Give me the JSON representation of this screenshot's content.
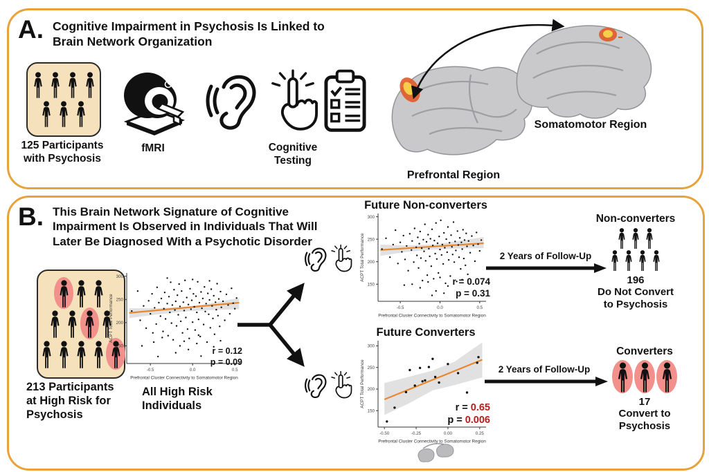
{
  "colors": {
    "panel_border": "#E8A23C",
    "card_bg": "#F5E1BB",
    "highlight_oval": "#F2908B",
    "trend_line": "#E8872F",
    "ci_band": "#C9C9C9",
    "stat_red": "#B91C1C",
    "brain_gray": "#C9C9CB",
    "activation_orange": "#E05A28",
    "activation_yellow": "#F7CE4A",
    "icon_black": "#111111"
  },
  "panel_a": {
    "label": "A.",
    "title_line1": "Cognitive Impairment in Psychosis Is Linked to",
    "title_line2": "Brain Network Organization",
    "participants_line1": "125 Participants",
    "participants_line2": "with Psychosis",
    "fmri_label": "fMRI",
    "cognitive_line1": "Cognitive",
    "cognitive_line2": "Testing",
    "prefrontal_label": "Prefrontal Region",
    "somatomotor_label": "Somatomotor Region",
    "people_card": {
      "rows": [
        [
          0,
          0,
          0,
          0
        ],
        [
          0,
          0,
          0
        ]
      ]
    }
  },
  "panel_b": {
    "label": "B.",
    "title_line1": "This Brain Network Signature of Cognitive",
    "title_line2": "Impairment Is Observed in Individuals That Will",
    "title_line3": "Later Be Diagnosed With a Psychotic Disorder",
    "participants_line1": "213 Participants",
    "participants_line2": "at High Risk for",
    "participants_line3": "Psychosis",
    "people_card": {
      "rows": [
        [
          1,
          0,
          0
        ],
        [
          0,
          0,
          1,
          0
        ],
        [
          0,
          0,
          0,
          0,
          1
        ]
      ]
    },
    "all_high_risk_line1": "All High Risk",
    "all_high_risk_line2": "Individuals",
    "followup_top": "2 Years of Follow-Up",
    "followup_bottom": "2 Years of Follow-Up",
    "nonconverters": {
      "title": "Non-converters",
      "people": {
        "rows": [
          [
            0,
            0,
            0
          ],
          [
            0,
            0,
            0,
            0
          ]
        ]
      },
      "count": "196",
      "line1": "Do Not Convert",
      "line2": "to Psychosis"
    },
    "converters": {
      "title": "Converters",
      "people": {
        "rows": [
          [
            1,
            1,
            1
          ]
        ]
      },
      "count": "17",
      "line1": "Convert to",
      "line2": "Psychosis"
    }
  },
  "chart_data": [
    {
      "type": "scatter",
      "title": "",
      "caption": "All High Risk Individuals",
      "xlabel": "Prefrontal Cluster Connectivity to Somatomotor Region",
      "ylabel": "ACPT Total Performance",
      "xlim": [
        -0.78,
        0.58
      ],
      "ylim": [
        112,
        307
      ],
      "x_ticks": [
        [
          -0.5,
          "-0.5"
        ],
        [
          0,
          "0.0"
        ],
        [
          0.5,
          "0.5"
        ]
      ],
      "y_ticks": [
        [
          150,
          "150"
        ],
        [
          200,
          "200"
        ],
        [
          250,
          "250"
        ],
        [
          300,
          "300"
        ]
      ],
      "stats": {
        "r_text": "r =",
        "r_value": "0.12",
        "p_text": "p =",
        "p_value": "0.09"
      },
      "n": 213,
      "point_r": 1.2,
      "trend": [
        [
          -0.75,
          221
        ],
        [
          0.55,
          243
        ]
      ],
      "band": [
        [
          -0.75,
          210,
          231
        ],
        [
          -0.45,
          217,
          231
        ],
        [
          -0.1,
          224,
          234
        ],
        [
          0.2,
          227,
          241
        ],
        [
          0.55,
          229,
          253
        ]
      ],
      "points": [
        [
          -0.72,
          225
        ],
        [
          -0.65,
          268
        ],
        [
          -0.62,
          205
        ],
        [
          -0.58,
          236
        ],
        [
          -0.55,
          188
        ],
        [
          -0.52,
          247
        ],
        [
          -0.5,
          219
        ],
        [
          -0.48,
          262
        ],
        [
          -0.46,
          158
        ],
        [
          -0.45,
          232
        ],
        [
          -0.43,
          197
        ],
        [
          -0.42,
          276
        ],
        [
          -0.4,
          243
        ],
        [
          -0.38,
          214
        ],
        [
          -0.37,
          252
        ],
        [
          -0.35,
          181
        ],
        [
          -0.34,
          230
        ],
        [
          -0.33,
          265
        ],
        [
          -0.32,
          208
        ],
        [
          -0.3,
          241
        ],
        [
          -0.29,
          172
        ],
        [
          -0.28,
          256
        ],
        [
          -0.27,
          222
        ],
        [
          -0.26,
          287
        ],
        [
          -0.25,
          199
        ],
        [
          -0.24,
          238
        ],
        [
          -0.23,
          163
        ],
        [
          -0.22,
          271
        ],
        [
          -0.21,
          227
        ],
        [
          -0.2,
          246
        ],
        [
          -0.19,
          193
        ],
        [
          -0.18,
          259
        ],
        [
          -0.17,
          217
        ],
        [
          -0.16,
          283
        ],
        [
          -0.15,
          235
        ],
        [
          -0.14,
          203
        ],
        [
          -0.13,
          268
        ],
        [
          -0.12,
          178
        ],
        [
          -0.11,
          244
        ],
        [
          -0.1,
          226
        ],
        [
          -0.09,
          291
        ],
        [
          -0.08,
          211
        ],
        [
          -0.07,
          254
        ],
        [
          -0.06,
          186
        ],
        [
          -0.05,
          239
        ],
        [
          -0.04,
          166
        ],
        [
          -0.03,
          273
        ],
        [
          -0.02,
          229
        ],
        [
          -0.01,
          248
        ],
        [
          0,
          201
        ],
        [
          0.01,
          262
        ],
        [
          0.02,
          234
        ],
        [
          0.03,
          184
        ],
        [
          0.04,
          257
        ],
        [
          0.05,
          222
        ],
        [
          0.06,
          288
        ],
        [
          0.07,
          207
        ],
        [
          0.08,
          243
        ],
        [
          0.09,
          170
        ],
        [
          0.1,
          266
        ],
        [
          0.11,
          231
        ],
        [
          0.12,
          252
        ],
        [
          0.13,
          196
        ],
        [
          0.14,
          277
        ],
        [
          0.15,
          224
        ],
        [
          0.16,
          241
        ],
        [
          0.17,
          158
        ],
        [
          0.18,
          263
        ],
        [
          0.19,
          218
        ],
        [
          0.2,
          249
        ],
        [
          0.21,
          189
        ],
        [
          0.22,
          272
        ],
        [
          0.23,
          236
        ],
        [
          0.24,
          209
        ],
        [
          0.25,
          258
        ],
        [
          0.26,
          175
        ],
        [
          0.27,
          244
        ],
        [
          0.28,
          228
        ],
        [
          0.29,
          284
        ],
        [
          0.3,
          215
        ],
        [
          0.31,
          251
        ],
        [
          0.32,
          192
        ],
        [
          0.33,
          267
        ],
        [
          0.34,
          233
        ],
        [
          0.36,
          246
        ],
        [
          0.38,
          205
        ],
        [
          0.4,
          261
        ],
        [
          0.42,
          238
        ],
        [
          0.44,
          219
        ],
        [
          0.46,
          274
        ],
        [
          0.48,
          242
        ],
        [
          0.5,
          230
        ],
        [
          0.52,
          253
        ],
        [
          -0.6,
          150
        ],
        [
          -0.41,
          127
        ],
        [
          -0.2,
          135
        ],
        [
          -0.05,
          142
        ],
        [
          0.1,
          128
        ],
        [
          0.25,
          148
        ],
        [
          0.05,
          155
        ],
        [
          -0.15,
          150
        ],
        [
          0.33,
          161
        ],
        [
          -0.3,
          296
        ],
        [
          0,
          293
        ],
        [
          0.2,
          290
        ],
        [
          -0.1,
          160
        ],
        [
          -0.36,
          168
        ],
        [
          0.07,
          173
        ],
        [
          -0.47,
          178
        ]
      ]
    },
    {
      "type": "scatter",
      "title": "Future Non-converters",
      "xlabel": "Prefrontal Cluster Connectivity to Somatomotor Region",
      "ylabel": "ACPT Total Performance",
      "xlim": [
        -0.78,
        0.58
      ],
      "ylim": [
        112,
        307
      ],
      "x_ticks": [
        [
          -0.5,
          "-0.5"
        ],
        [
          0,
          "0.0"
        ],
        [
          0.5,
          "0.5"
        ]
      ],
      "y_ticks": [
        [
          150,
          "150"
        ],
        [
          200,
          "200"
        ],
        [
          250,
          "250"
        ],
        [
          300,
          "300"
        ]
      ],
      "stats": {
        "r_text": "r =",
        "r_value": "0.074",
        "p_text": "p =",
        "p_value": "0.31"
      },
      "n": 196,
      "point_r": 1.2,
      "trend": [
        [
          -0.75,
          226
        ],
        [
          0.55,
          241
        ]
      ],
      "band": [
        [
          -0.75,
          213,
          238
        ],
        [
          -0.45,
          221,
          236
        ],
        [
          -0.1,
          227,
          238
        ],
        [
          0.2,
          229,
          245
        ],
        [
          0.55,
          230,
          255
        ]
      ],
      "points": [
        [
          -0.73,
          228
        ],
        [
          -0.68,
          252
        ],
        [
          -0.63,
          210
        ],
        [
          -0.59,
          238
        ],
        [
          -0.56,
          270
        ],
        [
          -0.53,
          196
        ],
        [
          -0.5,
          243
        ],
        [
          -0.48,
          222
        ],
        [
          -0.46,
          258
        ],
        [
          -0.44,
          205
        ],
        [
          -0.42,
          235
        ],
        [
          -0.4,
          180
        ],
        [
          -0.38,
          262
        ],
        [
          -0.36,
          226
        ],
        [
          -0.35,
          246
        ],
        [
          -0.33,
          199
        ],
        [
          -0.32,
          274
        ],
        [
          -0.3,
          232
        ],
        [
          -0.29,
          214
        ],
        [
          -0.28,
          254
        ],
        [
          -0.27,
          186
        ],
        [
          -0.26,
          240
        ],
        [
          -0.25,
          267
        ],
        [
          -0.24,
          208
        ],
        [
          -0.23,
          230
        ],
        [
          -0.22,
          158
        ],
        [
          -0.21,
          249
        ],
        [
          -0.2,
          223
        ],
        [
          -0.19,
          283
        ],
        [
          -0.18,
          202
        ],
        [
          -0.17,
          244
        ],
        [
          -0.16,
          170
        ],
        [
          -0.15,
          260
        ],
        [
          -0.14,
          229
        ],
        [
          -0.13,
          212
        ],
        [
          -0.12,
          251
        ],
        [
          -0.11,
          190
        ],
        [
          -0.1,
          272
        ],
        [
          -0.09,
          236
        ],
        [
          -0.08,
          162
        ],
        [
          -0.07,
          247
        ],
        [
          -0.06,
          218
        ],
        [
          -0.05,
          286
        ],
        [
          -0.04,
          206
        ],
        [
          -0.03,
          241
        ],
        [
          -0.02,
          175
        ],
        [
          -0.01,
          256
        ],
        [
          0,
          227
        ],
        [
          0.01,
          292
        ],
        [
          0.02,
          215
        ],
        [
          0.03,
          238
        ],
        [
          0.04,
          195
        ],
        [
          0.05,
          264
        ],
        [
          0.06,
          231
        ],
        [
          0.07,
          152
        ],
        [
          0.08,
          250
        ],
        [
          0.09,
          221
        ],
        [
          0.1,
          277
        ],
        [
          0.11,
          204
        ],
        [
          0.12,
          242
        ],
        [
          0.13,
          168
        ],
        [
          0.14,
          259
        ],
        [
          0.15,
          233
        ],
        [
          0.16,
          216
        ],
        [
          0.17,
          288
        ],
        [
          0.18,
          199
        ],
        [
          0.19,
          245
        ],
        [
          0.2,
          225
        ],
        [
          0.21,
          156
        ],
        [
          0.22,
          268
        ],
        [
          0.23,
          237
        ],
        [
          0.24,
          210
        ],
        [
          0.25,
          253
        ],
        [
          0.26,
          184
        ],
        [
          0.27,
          243
        ],
        [
          0.28,
          228
        ],
        [
          0.29,
          271
        ],
        [
          0.3,
          207
        ],
        [
          0.31,
          248
        ],
        [
          0.32,
          192
        ],
        [
          0.33,
          263
        ],
        [
          0.34,
          234
        ],
        [
          0.35,
          172
        ],
        [
          0.36,
          246
        ],
        [
          0.38,
          220
        ],
        [
          0.4,
          257
        ],
        [
          0.42,
          236
        ],
        [
          0.44,
          201
        ],
        [
          0.46,
          265
        ],
        [
          0.48,
          239
        ],
        [
          0.5,
          224
        ],
        [
          0.52,
          248
        ],
        [
          -0.45,
          148
        ],
        [
          -0.25,
          142
        ],
        [
          -0.05,
          135
        ],
        [
          0.1,
          146
        ],
        [
          0.05,
          130
        ],
        [
          -0.15,
          155
        ],
        [
          0.28,
          160
        ],
        [
          -0.35,
          150
        ],
        [
          0,
          165
        ],
        [
          -0.1,
          125
        ]
      ]
    },
    {
      "type": "scatter",
      "title": "Future Converters",
      "xlabel": "Prefrontal Cluster Connectivity to Somatomotor Region",
      "ylabel": "ACPT Total Performance",
      "xlim": [
        -0.55,
        0.3
      ],
      "ylim": [
        112,
        312
      ],
      "x_ticks": [
        [
          -0.5,
          "-0.50"
        ],
        [
          -0.25,
          "-0.25"
        ],
        [
          0,
          "0.00"
        ],
        [
          0.25,
          "0.25"
        ]
      ],
      "y_ticks": [
        [
          150,
          "150"
        ],
        [
          200,
          "200"
        ],
        [
          250,
          "250"
        ],
        [
          300,
          "300"
        ]
      ],
      "stats": {
        "r_text": "r =",
        "r_value": "0.65",
        "p_text": "p =",
        "p_value": "0.006"
      },
      "n": 17,
      "point_r": 1.7,
      "trend": [
        [
          -0.5,
          176
        ],
        [
          0.27,
          268
        ]
      ],
      "band": [
        [
          -0.5,
          140,
          214
        ],
        [
          -0.3,
          168,
          229
        ],
        [
          -0.12,
          197,
          243
        ],
        [
          0.05,
          209,
          263
        ],
        [
          0.27,
          227,
          308
        ]
      ],
      "points": [
        [
          -0.48,
          125
        ],
        [
          -0.42,
          157
        ],
        [
          -0.33,
          193
        ],
        [
          -0.3,
          244
        ],
        [
          -0.26,
          208
        ],
        [
          -0.22,
          249
        ],
        [
          -0.2,
          218
        ],
        [
          -0.18,
          220
        ],
        [
          -0.15,
          251
        ],
        [
          -0.12,
          270
        ],
        [
          -0.1,
          228
        ],
        [
          -0.07,
          215
        ],
        [
          0,
          258
        ],
        [
          0.08,
          237
        ],
        [
          0.15,
          192
        ],
        [
          0.23,
          261
        ],
        [
          0.24,
          274
        ]
      ]
    }
  ]
}
